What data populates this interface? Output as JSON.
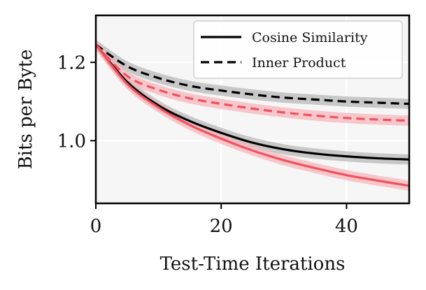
{
  "chart_data": {
    "type": "line",
    "title": "",
    "xlabel": "Test-Time Iterations",
    "ylabel": "Bits per Byte",
    "xlim": [
      0,
      50
    ],
    "ylim": [
      0.84,
      1.32
    ],
    "xticks": [
      0,
      20,
      40
    ],
    "yticks": [
      1.0,
      1.2
    ],
    "xtick_labels": [
      "0",
      "20",
      "40"
    ],
    "ytick_labels": [
      "1.0",
      "1.2"
    ],
    "grid": true,
    "legend": {
      "position": "top-right",
      "entries": [
        {
          "label": "Cosine Similarity",
          "style": "solid",
          "color": "#000000"
        },
        {
          "label": "Inner Product",
          "style": "dashed",
          "color": "#000000"
        }
      ]
    },
    "colors": {
      "black": "#000000",
      "red": "#f0525e",
      "black_band": "#b8b8b8",
      "red_band": "#f5b6bb",
      "plot_bg": "#f6f6f6"
    },
    "band_halfwidth": 0.013,
    "series": [
      {
        "name": "Cosine Similarity (black)",
        "style": "solid",
        "color_key": "black",
        "x": [
          0,
          5,
          10,
          15,
          20,
          25,
          30,
          35,
          40,
          45,
          50
        ],
        "values": [
          1.245,
          1.15,
          1.09,
          1.05,
          1.02,
          0.995,
          0.978,
          0.967,
          0.96,
          0.955,
          0.952
        ]
      },
      {
        "name": "Cosine Similarity (red)",
        "style": "solid",
        "color_key": "red",
        "x": [
          0,
          5,
          10,
          15,
          20,
          25,
          30,
          35,
          40,
          45,
          50
        ],
        "values": [
          1.245,
          1.145,
          1.085,
          1.04,
          1.005,
          0.975,
          0.95,
          0.93,
          0.912,
          0.898,
          0.885
        ]
      },
      {
        "name": "Inner Product (black)",
        "style": "dashed",
        "color_key": "black",
        "x": [
          0,
          5,
          10,
          15,
          20,
          25,
          30,
          35,
          40,
          45,
          50
        ],
        "values": [
          1.245,
          1.19,
          1.16,
          1.14,
          1.128,
          1.118,
          1.11,
          1.105,
          1.1,
          1.097,
          1.094
        ]
      },
      {
        "name": "Inner Product (red)",
        "style": "dashed",
        "color_key": "red",
        "x": [
          0,
          5,
          10,
          15,
          20,
          25,
          30,
          35,
          40,
          45,
          50
        ],
        "values": [
          1.245,
          1.165,
          1.13,
          1.108,
          1.094,
          1.082,
          1.072,
          1.064,
          1.058,
          1.054,
          1.051
        ]
      }
    ]
  }
}
